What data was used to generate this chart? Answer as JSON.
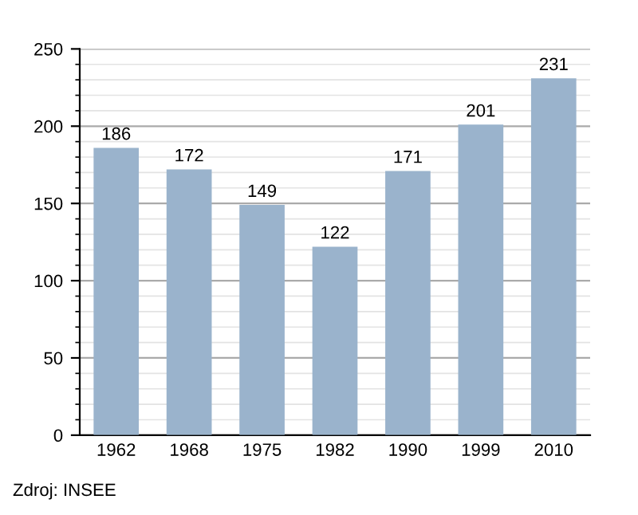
{
  "chart_data": {
    "type": "bar",
    "categories": [
      "1962",
      "1968",
      "1975",
      "1982",
      "1990",
      "1999",
      "2010"
    ],
    "values": [
      186,
      172,
      149,
      122,
      171,
      201,
      231
    ],
    "color": "#9ab3cc",
    "ylim": [
      0,
      250
    ],
    "yticks": [
      0,
      50,
      100,
      150,
      200,
      250
    ],
    "grid": "y",
    "data_labels": true,
    "legend": false,
    "annotations": [
      "Zdroj: INSEE"
    ]
  }
}
